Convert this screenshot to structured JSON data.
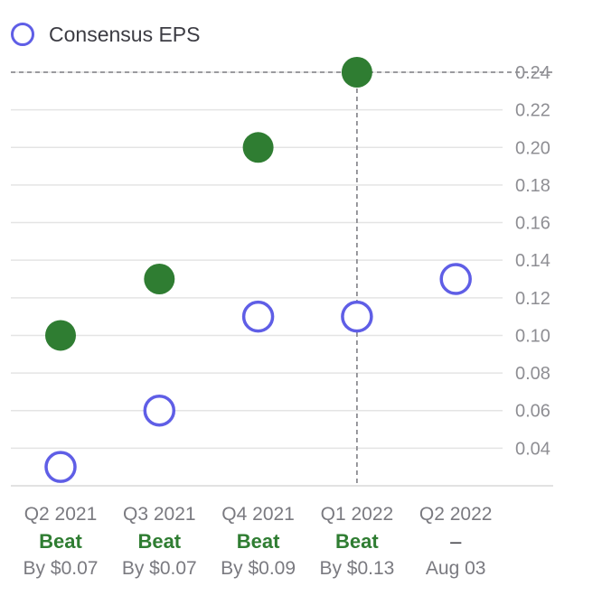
{
  "legend": {
    "label": "Consensus EPS",
    "marker_color": "#5f5ee6"
  },
  "chart_data": {
    "type": "scatter",
    "categories": [
      "Q2 2021",
      "Q3 2021",
      "Q4 2021",
      "Q1 2022",
      "Q2 2022"
    ],
    "series": [
      {
        "name": "Consensus EPS",
        "values": [
          0.03,
          0.06,
          0.11,
          0.11,
          0.13
        ],
        "style": "hollow",
        "color": "#5f5ee6"
      },
      {
        "values": [
          0.1,
          0.13,
          0.2,
          0.24,
          null
        ],
        "style": "filled",
        "color": "#2f7d32"
      }
    ],
    "y_ticks": [
      0.04,
      0.06,
      0.08,
      0.1,
      0.12,
      0.14,
      0.16,
      0.18,
      0.2,
      0.22,
      0.24
    ],
    "y_tick_labels": [
      "0.04",
      "0.06",
      "0.08",
      "0.10",
      "0.12",
      "0.14",
      "0.16",
      "0.18",
      "0.20",
      "0.22",
      "0.24"
    ],
    "ylim": [
      0.02,
      0.24
    ],
    "grid": true,
    "y_axis_position": "right",
    "crosshair": {
      "category": "Q1 2022",
      "value": 0.24
    }
  },
  "results": [
    {
      "status": "Beat",
      "detail": "By $0.07"
    },
    {
      "status": "Beat",
      "detail": "By $0.07"
    },
    {
      "status": "Beat",
      "detail": "By $0.09"
    },
    {
      "status": "Beat",
      "detail": "By $0.13"
    },
    {
      "status": "–",
      "detail": "Aug 03"
    }
  ]
}
